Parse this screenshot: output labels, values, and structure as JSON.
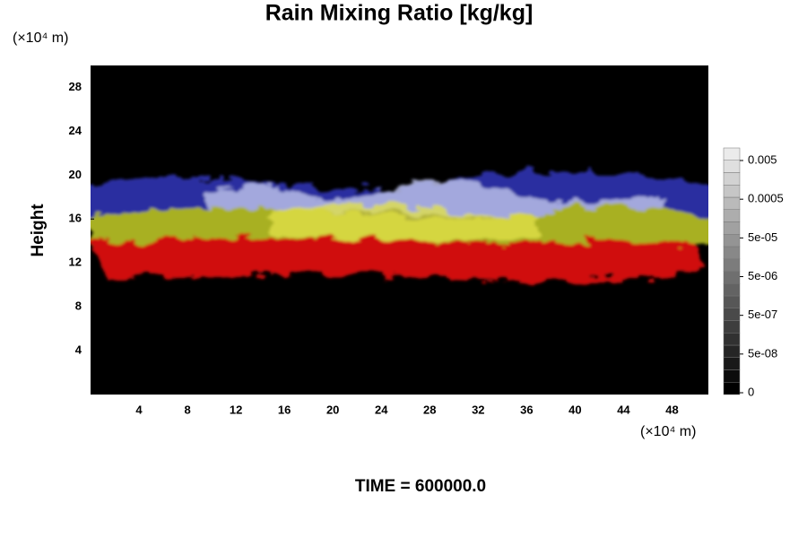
{
  "chart_data": {
    "type": "volume-render",
    "title": "Rain Mixing Ratio [kg/kg]",
    "y_label": "Height",
    "x_unit": "(×10⁴ m)",
    "y_unit": "(×10⁴ m)",
    "caption": "TIME = 600000.0",
    "xlim": [
      0,
      51
    ],
    "xticks": [
      4,
      8,
      12,
      16,
      20,
      24,
      28,
      32,
      36,
      40,
      44,
      48
    ],
    "ylim": [
      0,
      30
    ],
    "yticks": [
      4,
      8,
      12,
      16,
      20,
      24,
      28
    ],
    "colorbar_ticks": [
      0,
      {
        "value": 5e-08,
        "label": "5e-08"
      },
      {
        "value": 5e-07,
        "label": "5e-07"
      },
      {
        "value": 5e-06,
        "label": "5e-06"
      },
      {
        "value": 5e-05,
        "label": "5e-05"
      },
      0.0005,
      0.005
    ]
  }
}
